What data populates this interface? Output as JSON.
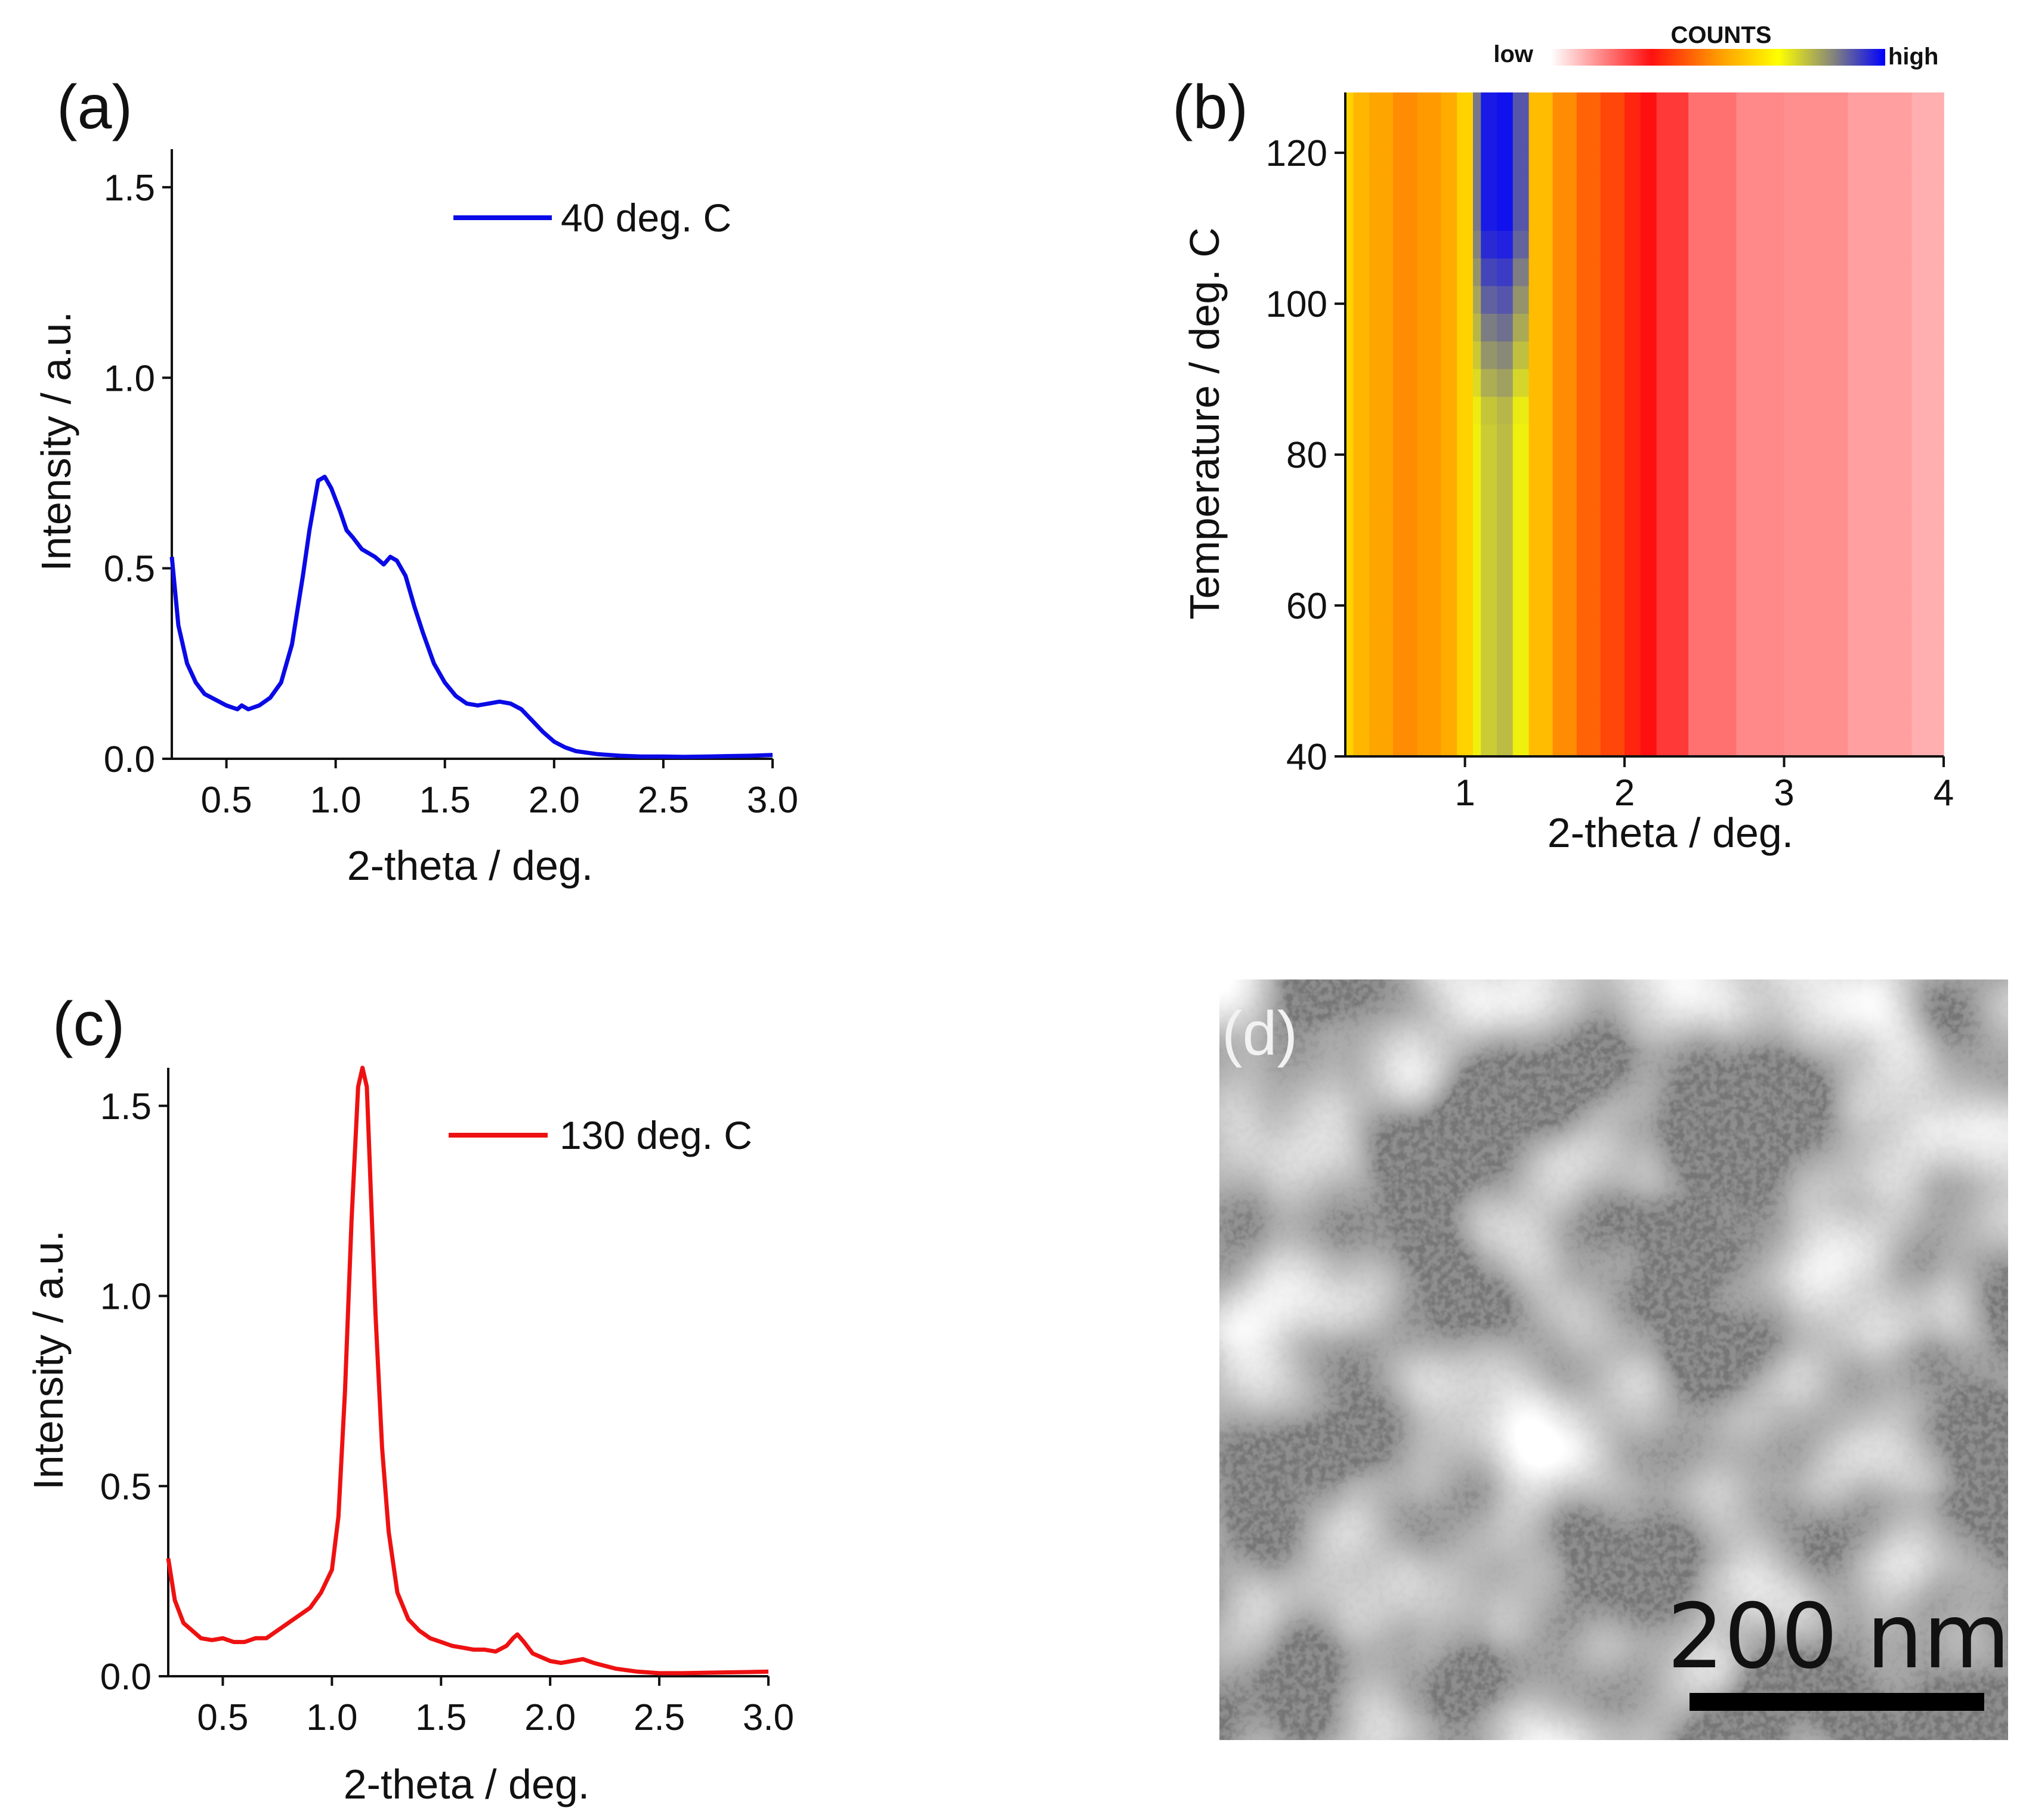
{
  "panels": {
    "a": {
      "label": "(a)"
    },
    "b": {
      "label": "(b)"
    },
    "c": {
      "label": "(c)"
    },
    "d": {
      "label": "(d)",
      "scale_bar": "200 nm"
    }
  },
  "colorbar": {
    "title": "COUNTS",
    "low": "low",
    "high": "high"
  },
  "chart_data": [
    {
      "id": "a",
      "type": "line",
      "xlabel": "2-theta / deg.",
      "ylabel": "Intensity / a.u.",
      "xlim": [
        0.25,
        3.0
      ],
      "ylim": [
        0,
        1.6
      ],
      "xticks": [
        "0.5",
        "1.0",
        "1.5",
        "2.0",
        "2.5",
        "3.0"
      ],
      "yticks": [
        "0.0",
        "0.5",
        "1.0",
        "1.5"
      ],
      "legend_position": "top-right",
      "series": [
        {
          "name": "40 deg. C",
          "color": "#0a0ae6",
          "x": [
            0.25,
            0.28,
            0.32,
            0.36,
            0.4,
            0.45,
            0.5,
            0.55,
            0.57,
            0.6,
            0.65,
            0.7,
            0.75,
            0.8,
            0.85,
            0.88,
            0.92,
            0.95,
            0.98,
            1.02,
            1.05,
            1.08,
            1.12,
            1.15,
            1.18,
            1.22,
            1.25,
            1.28,
            1.32,
            1.36,
            1.4,
            1.45,
            1.5,
            1.55,
            1.6,
            1.65,
            1.7,
            1.75,
            1.8,
            1.85,
            1.9,
            1.95,
            2.0,
            2.05,
            2.1,
            2.2,
            2.3,
            2.4,
            2.5,
            2.6,
            2.7,
            2.8,
            2.9,
            3.0
          ],
          "y": [
            0.53,
            0.35,
            0.25,
            0.2,
            0.17,
            0.155,
            0.14,
            0.13,
            0.14,
            0.13,
            0.14,
            0.16,
            0.2,
            0.3,
            0.48,
            0.6,
            0.73,
            0.74,
            0.71,
            0.65,
            0.6,
            0.58,
            0.55,
            0.54,
            0.53,
            0.51,
            0.53,
            0.52,
            0.48,
            0.4,
            0.33,
            0.25,
            0.2,
            0.165,
            0.145,
            0.14,
            0.145,
            0.15,
            0.145,
            0.13,
            0.1,
            0.07,
            0.045,
            0.03,
            0.02,
            0.012,
            0.008,
            0.006,
            0.006,
            0.005,
            0.006,
            0.007,
            0.008,
            0.01
          ]
        }
      ]
    },
    {
      "id": "b",
      "type": "heatmap",
      "xlabel": "2-theta / deg.",
      "ylabel": "Temperature / deg. C",
      "xlim": [
        0.25,
        4.0
      ],
      "ylim": [
        40,
        128
      ],
      "xticks": [
        "1",
        "2",
        "3",
        "4"
      ],
      "yticks": [
        "40",
        "60",
        "80",
        "100",
        "120"
      ],
      "colorscale": [
        "#ffffff",
        "#ff0000",
        "#ff9900",
        "#ffff00",
        "#808080",
        "#0000ff"
      ],
      "bands_2theta": [
        0.25,
        0.3,
        0.4,
        0.55,
        0.7,
        0.85,
        0.95,
        1.05,
        1.1,
        1.2,
        1.3,
        1.4,
        1.55,
        1.7,
        1.85,
        2.0,
        2.1,
        2.2,
        2.4,
        2.7,
        3.0,
        3.4,
        3.8,
        4.0
      ],
      "counts_at_120C": [
        0.6,
        0.55,
        0.52,
        0.48,
        0.5,
        0.53,
        0.6,
        0.86,
        0.97,
        0.98,
        0.9,
        0.56,
        0.48,
        0.42,
        0.38,
        0.33,
        0.3,
        0.25,
        0.18,
        0.15,
        0.14,
        0.12,
        0.1,
        0.05
      ],
      "counts_at_40C": [
        0.6,
        0.55,
        0.52,
        0.48,
        0.5,
        0.53,
        0.6,
        0.7,
        0.75,
        0.77,
        0.7,
        0.56,
        0.48,
        0.42,
        0.38,
        0.33,
        0.3,
        0.25,
        0.18,
        0.15,
        0.14,
        0.12,
        0.1,
        0.05
      ],
      "colorbar_title": "COUNTS"
    },
    {
      "id": "c",
      "type": "line",
      "xlabel": "2-theta / deg.",
      "ylabel": "Intensity / a.u.",
      "xlim": [
        0.25,
        3.0
      ],
      "ylim": [
        0,
        1.6
      ],
      "xticks": [
        "0.5",
        "1.0",
        "1.5",
        "2.0",
        "2.5",
        "3.0"
      ],
      "yticks": [
        "0.0",
        "0.5",
        "1.0",
        "1.5"
      ],
      "legend_position": "top-right",
      "series": [
        {
          "name": "130 deg. C",
          "color": "#ee1111",
          "x": [
            0.25,
            0.28,
            0.32,
            0.36,
            0.4,
            0.45,
            0.5,
            0.55,
            0.6,
            0.65,
            0.7,
            0.75,
            0.8,
            0.85,
            0.9,
            0.95,
            1.0,
            1.03,
            1.06,
            1.09,
            1.12,
            1.14,
            1.16,
            1.18,
            1.2,
            1.23,
            1.26,
            1.3,
            1.35,
            1.4,
            1.45,
            1.5,
            1.55,
            1.6,
            1.65,
            1.7,
            1.75,
            1.8,
            1.83,
            1.85,
            1.88,
            1.92,
            1.96,
            2.0,
            2.05,
            2.1,
            2.15,
            2.2,
            2.3,
            2.4,
            2.5,
            2.6,
            2.7,
            2.8,
            2.9,
            3.0
          ],
          "y": [
            0.31,
            0.2,
            0.14,
            0.12,
            0.1,
            0.095,
            0.1,
            0.09,
            0.09,
            0.1,
            0.1,
            0.12,
            0.14,
            0.16,
            0.18,
            0.22,
            0.28,
            0.42,
            0.75,
            1.2,
            1.55,
            1.6,
            1.55,
            1.25,
            0.95,
            0.6,
            0.38,
            0.22,
            0.15,
            0.12,
            0.1,
            0.09,
            0.08,
            0.075,
            0.07,
            0.07,
            0.065,
            0.08,
            0.1,
            0.11,
            0.09,
            0.06,
            0.05,
            0.04,
            0.035,
            0.04,
            0.045,
            0.035,
            0.02,
            0.012,
            0.008,
            0.008,
            0.009,
            0.01,
            0.011,
            0.012
          ]
        }
      ]
    }
  ]
}
